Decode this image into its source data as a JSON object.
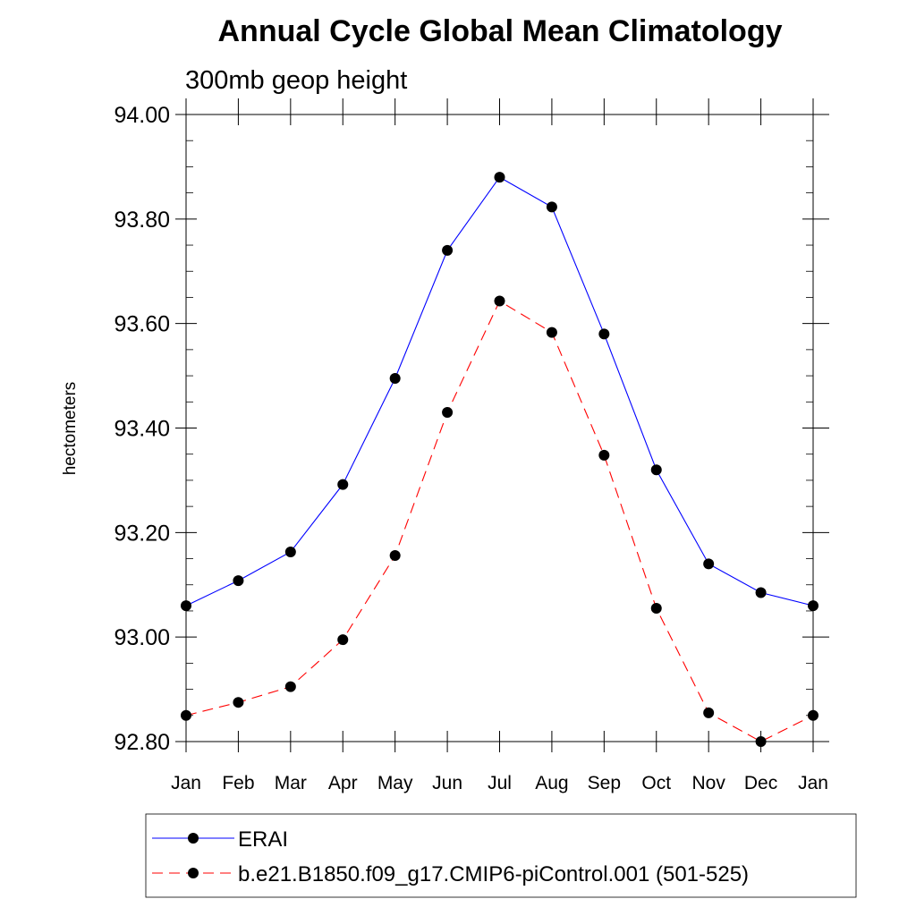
{
  "chart_data": {
    "type": "line",
    "title": "Annual Cycle Global Mean Climatology",
    "subtitle": "300mb geop height",
    "xlabel": "",
    "ylabel": "hectometers",
    "categories": [
      "Jan",
      "Feb",
      "Mar",
      "Apr",
      "May",
      "Jun",
      "Jul",
      "Aug",
      "Sep",
      "Oct",
      "Nov",
      "Dec",
      "Jan"
    ],
    "y_tick_labels": [
      "92.80",
      "93.00",
      "93.20",
      "93.40",
      "93.60",
      "93.80",
      "94.00"
    ],
    "y_ticks": [
      92.8,
      93.0,
      93.2,
      93.4,
      93.6,
      93.8,
      94.0
    ],
    "ylim": [
      92.8,
      94.0
    ],
    "grid": false,
    "legend_position": "bottom",
    "series": [
      {
        "name": "ERAI",
        "color": "#0000ff",
        "line_style": "solid",
        "marker": "filled-circle",
        "values": [
          93.06,
          93.108,
          93.163,
          93.292,
          93.495,
          93.74,
          93.88,
          93.823,
          93.58,
          93.32,
          93.14,
          93.085,
          93.06
        ]
      },
      {
        "name": "b.e21.B1850.f09_g17.CMIP6-piControl.001 (501-525)",
        "color": "#ff0000",
        "line_style": "dashed",
        "marker": "filled-circle",
        "values": [
          92.85,
          92.875,
          92.905,
          92.995,
          93.156,
          93.43,
          93.643,
          93.583,
          93.348,
          93.055,
          92.855,
          92.8,
          92.85
        ]
      }
    ]
  }
}
